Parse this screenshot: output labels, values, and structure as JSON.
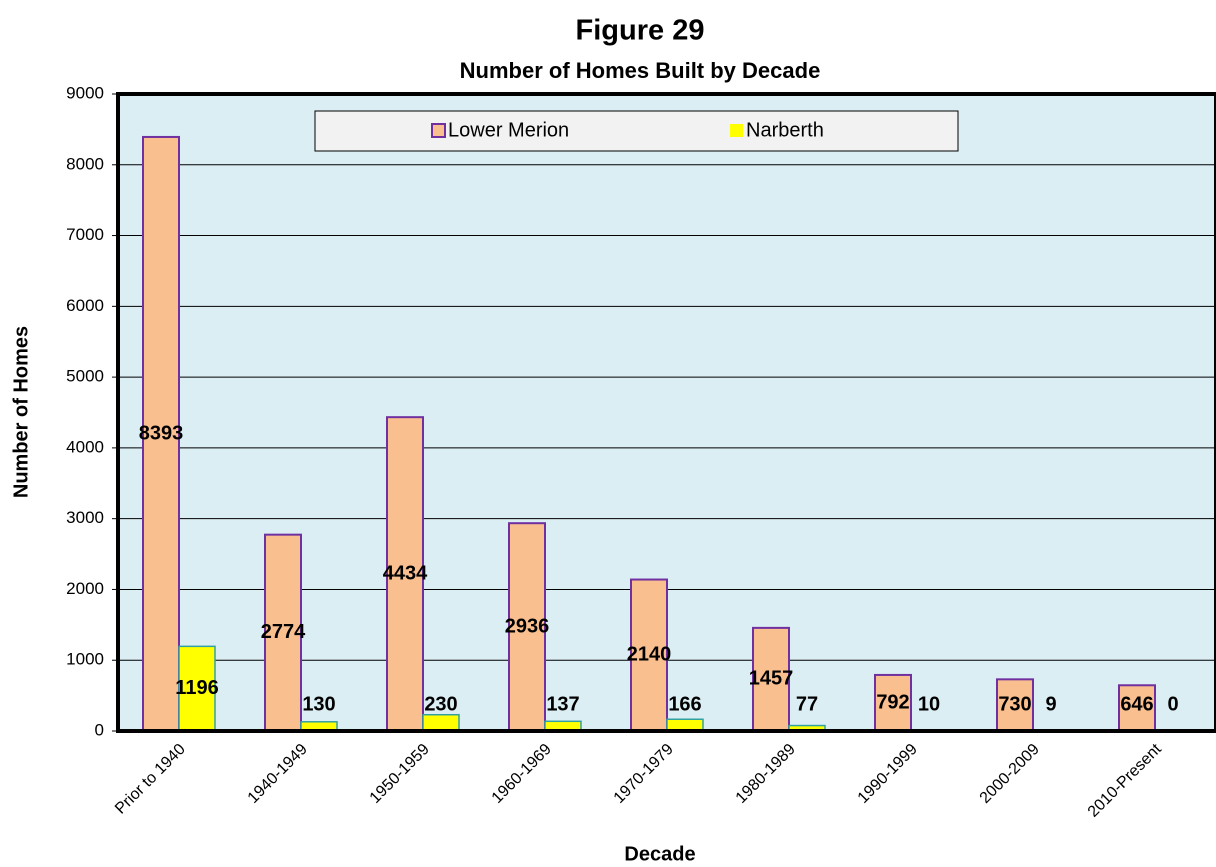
{
  "chart_data": {
    "type": "bar",
    "title": "Figure 29",
    "subtitle": "Number of Homes Built by Decade",
    "x_label": "Decade",
    "y_label": "Number of Homes",
    "categories": [
      "Prior to 1940",
      "1940-1949",
      "1950-1959",
      "1960-1969",
      "1970-1979",
      "1980-1989",
      "1990-1999",
      "2000-2009",
      "2010-Present"
    ],
    "series": [
      {
        "name": "Lower Merion",
        "color": "#fabf8f",
        "values": [
          8393,
          2774,
          4434,
          2936,
          2140,
          1457,
          792,
          730,
          646
        ]
      },
      {
        "name": "Narberth",
        "color": "#ffff00",
        "values": [
          1196,
          130,
          230,
          137,
          166,
          77,
          10,
          9,
          0
        ]
      }
    ],
    "ylim": [
      0,
      9000
    ],
    "yticks": [
      0,
      1000,
      2000,
      3000,
      4000,
      5000,
      6000,
      7000,
      8000,
      9000
    ],
    "grid": true,
    "legend": "top"
  }
}
